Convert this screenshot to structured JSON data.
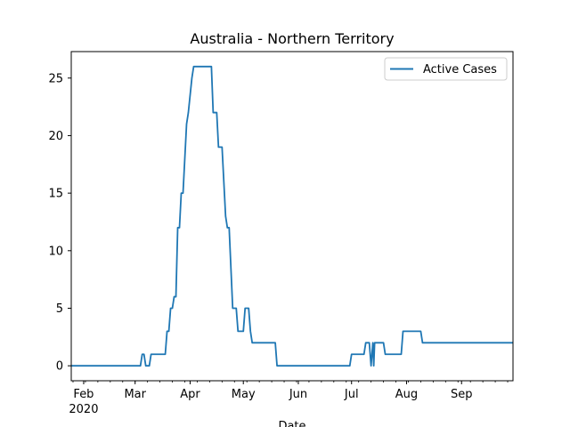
{
  "chart_data": {
    "type": "line",
    "title": "Australia - Northern Territory",
    "xlabel": "Date",
    "ylabel": "",
    "x_range": [
      "2020-01-25",
      "2020-09-30"
    ],
    "ylim": [
      -1.3,
      27.3
    ],
    "grid": false,
    "legend_placement": "top-right",
    "y_ticks": [
      0,
      5,
      10,
      15,
      20,
      25
    ],
    "x_ticks": [
      {
        "date": "2020-02-01",
        "label": "Feb",
        "sublabel": "2020"
      },
      {
        "date": "2020-03-01",
        "label": "Mar",
        "sublabel": ""
      },
      {
        "date": "2020-04-01",
        "label": "Apr",
        "sublabel": ""
      },
      {
        "date": "2020-05-01",
        "label": "May",
        "sublabel": ""
      },
      {
        "date": "2020-06-01",
        "label": "Jun",
        "sublabel": ""
      },
      {
        "date": "2020-07-01",
        "label": "Jul",
        "sublabel": ""
      },
      {
        "date": "2020-08-01",
        "label": "Aug",
        "sublabel": ""
      },
      {
        "date": "2020-09-01",
        "label": "Sep",
        "sublabel": ""
      }
    ],
    "series": [
      {
        "name": "Active Cases",
        "color": "#1f77b4",
        "points": [
          [
            "2020-01-25",
            0
          ],
          [
            "2020-03-04",
            0
          ],
          [
            "2020-03-05",
            1
          ],
          [
            "2020-03-06",
            1
          ],
          [
            "2020-03-07",
            0
          ],
          [
            "2020-03-09",
            0
          ],
          [
            "2020-03-10",
            1
          ],
          [
            "2020-03-18",
            1
          ],
          [
            "2020-03-19",
            3
          ],
          [
            "2020-03-20",
            3
          ],
          [
            "2020-03-21",
            5
          ],
          [
            "2020-03-22",
            5
          ],
          [
            "2020-03-23",
            6
          ],
          [
            "2020-03-24",
            6
          ],
          [
            "2020-03-25",
            12
          ],
          [
            "2020-03-26",
            12
          ],
          [
            "2020-03-27",
            15
          ],
          [
            "2020-03-28",
            15
          ],
          [
            "2020-03-29",
            18
          ],
          [
            "2020-03-30",
            21
          ],
          [
            "2020-03-31",
            22
          ],
          [
            "2020-04-02",
            25
          ],
          [
            "2020-04-03",
            26
          ],
          [
            "2020-04-13",
            26
          ],
          [
            "2020-04-14",
            22
          ],
          [
            "2020-04-16",
            22
          ],
          [
            "2020-04-17",
            19
          ],
          [
            "2020-04-19",
            19
          ],
          [
            "2020-04-21",
            13
          ],
          [
            "2020-04-22",
            12
          ],
          [
            "2020-04-23",
            12
          ],
          [
            "2020-04-25",
            5
          ],
          [
            "2020-04-27",
            5
          ],
          [
            "2020-04-28",
            3
          ],
          [
            "2020-05-01",
            3
          ],
          [
            "2020-05-02",
            5
          ],
          [
            "2020-05-04",
            5
          ],
          [
            "2020-05-05",
            3
          ],
          [
            "2020-05-06",
            2
          ],
          [
            "2020-05-19",
            2
          ],
          [
            "2020-05-20",
            0
          ],
          [
            "2020-06-30",
            0
          ],
          [
            "2020-07-01",
            1
          ],
          [
            "2020-07-08",
            1
          ],
          [
            "2020-07-09",
            2
          ],
          [
            "2020-07-11",
            2
          ],
          [
            "2020-07-12",
            0
          ],
          [
            "2020-07-13",
            2
          ],
          [
            "2020-07-13.5",
            0
          ],
          [
            "2020-07-14",
            2
          ],
          [
            "2020-07-19",
            2
          ],
          [
            "2020-07-20",
            1
          ],
          [
            "2020-07-29",
            1
          ],
          [
            "2020-07-30",
            3
          ],
          [
            "2020-08-09",
            3
          ],
          [
            "2020-08-10",
            2
          ],
          [
            "2020-09-30",
            2
          ]
        ]
      }
    ]
  }
}
